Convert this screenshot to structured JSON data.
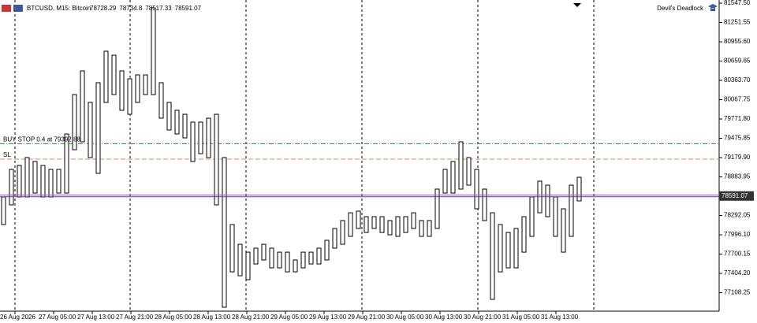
{
  "chart_data": {
    "type": "range",
    "symbol": "BTCUSD, M15:  Bitcoin",
    "header_ohlc": [
      78728.29,
      78734.8,
      78517.33,
      78591.07
    ],
    "indicator": "Devil's Deadlock",
    "buy_stop_label": "BUY STOP 0.4 at 79392.88",
    "buy_stop": 79392.88,
    "sl_label": "SL",
    "sl": 79156,
    "current_price": 78591.07,
    "color": "#000000",
    "categories": [
      "26 Aug 2026",
      "27 Aug 05:00",
      "27 Aug 13:00",
      "27 Aug 21:00",
      "28 Aug 05:00",
      "28 Aug 13:00",
      "28 Aug 21:00",
      "29 Aug 05:00",
      "29 Aug 13:00",
      "29 Aug 21:00",
      "30 Aug 05:00",
      "30 Aug 13:00",
      "30 Aug 21:00",
      "31 Aug 05:00",
      "31 Aug 13:00"
    ],
    "high": [
      78576,
      78999,
      79059,
      79180,
      79120,
      79059,
      78999,
      78999,
      79542,
      80146,
      80509,
      80026,
      80328,
      80811,
      80750,
      80509,
      80388,
      80448,
      80448,
      81475,
      80328,
      80026,
      79905,
      79844,
      79724,
      79724,
      79784,
      79844,
      79180,
      78153,
      77851,
      77730,
      77791,
      77851,
      77791,
      77730,
      77730,
      77610,
      77730,
      77730,
      77791,
      77912,
      78093,
      78214,
      78334,
      78359,
      78274,
      78274,
      78274,
      78214,
      78274,
      78274,
      78334,
      78214,
      78214,
      78697,
      78999,
      79120,
      79422,
      79180,
      78999,
      78697,
      78334,
      78153,
      78032,
      78093,
      78274,
      78576,
      78818,
      78757,
      78576,
      78395,
      78757,
      78878
    ],
    "low": [
      78153,
      78455,
      78576,
      78576,
      78636,
      78576,
      78576,
      78636,
      78636,
      79301,
      79422,
      79180,
      78938,
      80026,
      80146,
      79905,
      79844,
      80026,
      80146,
      80146,
      79784,
      79603,
      79542,
      79482,
      79120,
      79240,
      79180,
      78455,
      76885,
      77428,
      77368,
      77308,
      77549,
      77610,
      77489,
      77489,
      77428,
      77428,
      77489,
      77549,
      77549,
      77610,
      77791,
      77851,
      77972,
      78093,
      78032,
      78093,
      78032,
      77996,
      77972,
      78032,
      78093,
      77972,
      77972,
      78093,
      78636,
      78636,
      78697,
      78757,
      78395,
      78214,
      77006,
      77428,
      77489,
      77489,
      77730,
      77972,
      78334,
      78274,
      77972,
      77730,
      77972,
      78516
    ],
    "ylim": [
      76825,
      81596
    ],
    "yticks": [
      {
        "value": 81547.5,
        "label": "81547.50"
      },
      {
        "value": 81251.55,
        "label": "81251.55"
      },
      {
        "value": 80955.6,
        "label": "80955.60"
      },
      {
        "value": 80659.65,
        "label": "80659.65"
      },
      {
        "value": 80363.7,
        "label": "80363.70"
      },
      {
        "value": 80067.75,
        "label": "80067.75"
      },
      {
        "value": 79771.8,
        "label": "79771.80"
      },
      {
        "value": 79475.85,
        "label": "79475.85"
      },
      {
        "value": 79179.9,
        "label": "79179.90"
      },
      {
        "value": 78883.95,
        "label": "78883.95"
      },
      {
        "value": 78292.05,
        "label": "78292.05"
      },
      {
        "value": 77996.1,
        "label": "77996.10"
      },
      {
        "value": 77700.15,
        "label": "77700.15"
      },
      {
        "value": 77404.2,
        "label": "77404.20"
      },
      {
        "value": 77108.25,
        "label": "77108.25"
      }
    ]
  }
}
